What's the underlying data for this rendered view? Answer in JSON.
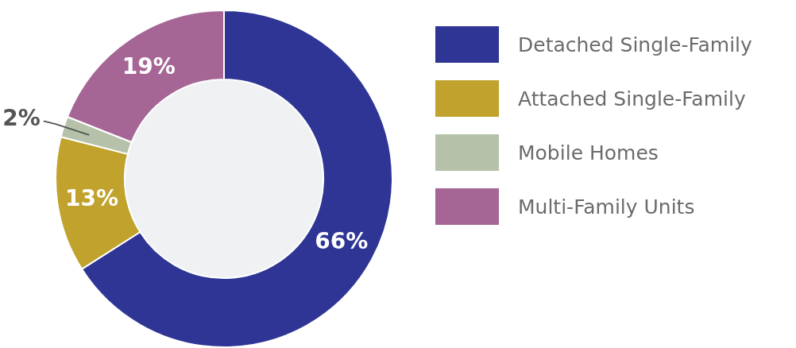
{
  "chart_data": {
    "type": "donut",
    "categories": [
      "Detached Single-Family",
      "Attached Single-Family",
      "Mobile Homes",
      "Multi-Family Units"
    ],
    "values": [
      66,
      13,
      2,
      19
    ],
    "colors": [
      "#2e3595",
      "#c0a22d",
      "#b5c2a9",
      "#a56696"
    ],
    "value_labels": [
      "66%",
      "13%",
      "2%",
      "19%"
    ],
    "legend": "right"
  }
}
